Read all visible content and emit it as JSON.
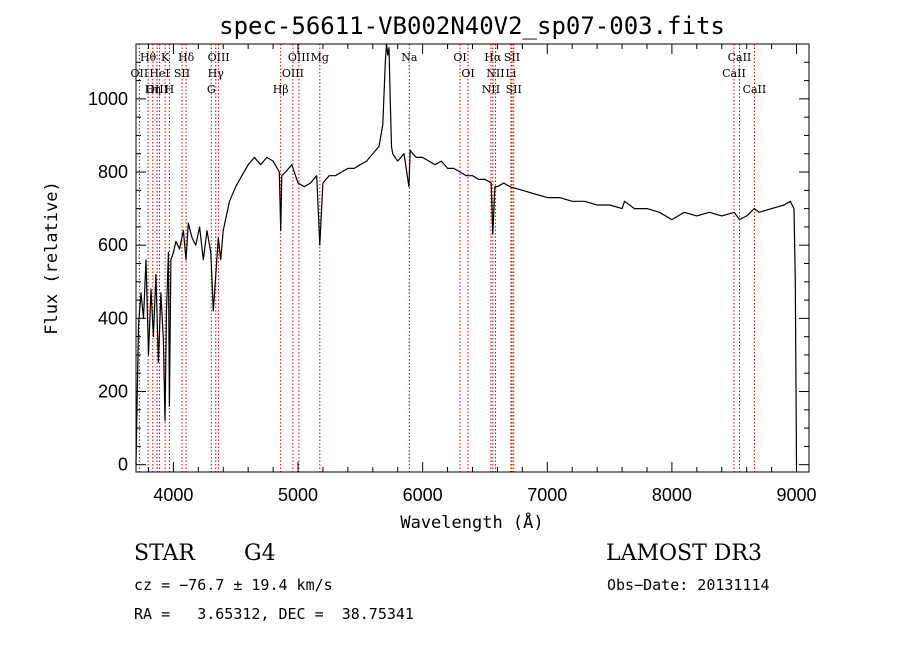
{
  "chart_data": {
    "type": "line",
    "title": "spec-56611-VB002N40V2_sp07-003.fits",
    "xlabel": "Wavelength (Å)",
    "ylabel": "Flux (relative)",
    "xlim": [
      3700,
      9100
    ],
    "ylim": [
      -20,
      1150
    ],
    "xticks": [
      4000,
      5000,
      6000,
      7000,
      8000,
      9000
    ],
    "yticks": [
      0,
      200,
      400,
      600,
      800,
      1000
    ],
    "grid": false,
    "line_color": "#cc0000",
    "spectrum": {
      "x": [
        3700,
        3720,
        3740,
        3760,
        3780,
        3800,
        3820,
        3840,
        3860,
        3880,
        3900,
        3920,
        3933,
        3945,
        3960,
        3968,
        3980,
        4000,
        4020,
        4050,
        4080,
        4101,
        4120,
        4150,
        4180,
        4210,
        4240,
        4270,
        4300,
        4320,
        4340,
        4360,
        4380,
        4400,
        4450,
        4500,
        4550,
        4600,
        4650,
        4700,
        4750,
        4800,
        4850,
        4861,
        4870,
        4900,
        4950,
        5000,
        5050,
        5100,
        5150,
        5175,
        5200,
        5250,
        5300,
        5350,
        5400,
        5450,
        5500,
        5550,
        5600,
        5650,
        5680,
        5700,
        5710,
        5720,
        5730,
        5740,
        5750,
        5760,
        5780,
        5800,
        5850,
        5890,
        5900,
        5920,
        5950,
        6000,
        6050,
        6100,
        6150,
        6200,
        6250,
        6300,
        6350,
        6400,
        6450,
        6500,
        6550,
        6563,
        6580,
        6600,
        6650,
        6700,
        6800,
        6900,
        7000,
        7100,
        7200,
        7300,
        7400,
        7500,
        7600,
        7620,
        7700,
        7800,
        7900,
        8000,
        8050,
        8100,
        8200,
        8300,
        8400,
        8500,
        8542,
        8600,
        8662,
        8700,
        8800,
        8900,
        8950,
        8980,
        8990,
        9000
      ],
      "y": [
        0,
        380,
        470,
        400,
        560,
        300,
        480,
        350,
        520,
        280,
        470,
        340,
        120,
        420,
        580,
        160,
        560,
        580,
        610,
        590,
        640,
        560,
        660,
        620,
        600,
        650,
        560,
        640,
        580,
        420,
        520,
        620,
        560,
        640,
        720,
        760,
        790,
        820,
        840,
        820,
        840,
        830,
        800,
        640,
        790,
        800,
        820,
        770,
        760,
        770,
        790,
        600,
        770,
        790,
        790,
        800,
        810,
        810,
        820,
        830,
        850,
        870,
        930,
        1100,
        1150,
        1120,
        1140,
        1000,
        870,
        850,
        840,
        830,
        850,
        760,
        860,
        850,
        840,
        840,
        830,
        820,
        830,
        810,
        810,
        800,
        790,
        790,
        780,
        780,
        770,
        630,
        760,
        760,
        770,
        760,
        750,
        740,
        730,
        730,
        720,
        720,
        710,
        710,
        700,
        720,
        700,
        700,
        690,
        670,
        680,
        690,
        680,
        690,
        680,
        690,
        670,
        680,
        700,
        690,
        700,
        710,
        720,
        700,
        500,
        0
      ]
    },
    "line_groups": [
      {
        "labels": [
          "Hθ",
          "OII",
          "OIII"
        ],
        "wavelengths": [
          3797,
          3727,
          3869
        ]
      },
      {
        "labels": [
          "K",
          "HeI",
          "Hη"
        ],
        "wavelengths": [
          3934,
          3889,
          3835
        ]
      },
      {
        "labels": [
          "Hδ",
          "SII",
          "H"
        ],
        "wavelengths": [
          4102,
          4069,
          3968
        ]
      },
      {
        "labels": [
          "OIII",
          "Hγ",
          "G"
        ],
        "wavelengths": [
          4363,
          4340,
          4304
        ]
      },
      {
        "labels": [
          "OIII",
          "OIII",
          "Hβ"
        ],
        "wavelengths": [
          5007,
          4959,
          4861
        ]
      },
      {
        "labels": [
          "Mg"
        ],
        "wavelengths": [
          5175
        ]
      },
      {
        "labels": [
          "Na"
        ],
        "wavelengths": [
          5893
        ]
      },
      {
        "labels": [
          "OI",
          "OI"
        ],
        "wavelengths": [
          6300,
          6364
        ]
      },
      {
        "labels": [
          "Hα",
          "NII",
          "NII"
        ],
        "wavelengths": [
          6563,
          6584,
          6548
        ]
      },
      {
        "labels": [
          "SII",
          "Li",
          "SII"
        ],
        "wavelengths": [
          6717,
          6708,
          6731
        ]
      },
      {
        "labels": [
          "CaII",
          "CaII",
          "CaII"
        ],
        "wavelengths": [
          8542,
          8498,
          8662
        ]
      }
    ]
  },
  "info": {
    "object_class": "STAR",
    "subclass": "G4",
    "survey": "LAMOST DR3",
    "redshift": "cz = −76.7 ± 19.4 km/s",
    "obs_date": "Obs−Date: 20131114",
    "coords": "RA =   3.65312, DEC =  38.75341"
  }
}
